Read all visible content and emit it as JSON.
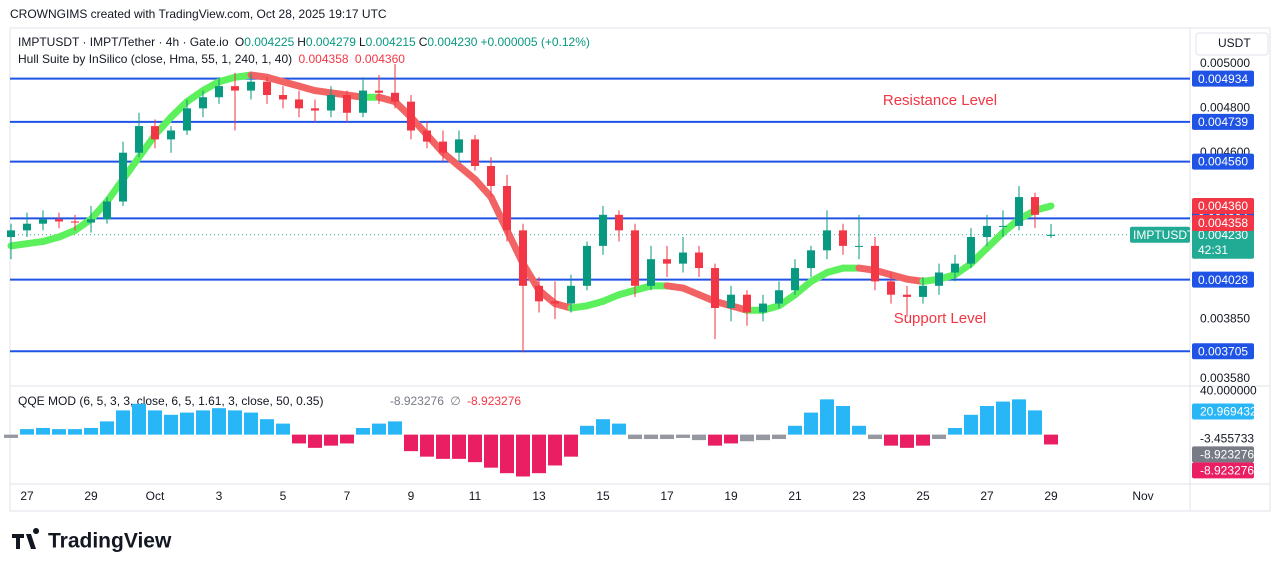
{
  "header": {
    "caption": "CROWNGIMS created with TradingView.com, Oct 28, 2025 19:17 UTC"
  },
  "legend": {
    "symbol": "IMPTUSDT · IMPT/Tether · 4h · Gate.io",
    "ohlc": [
      {
        "label": "O",
        "value": "0.004225"
      },
      {
        "label": "H",
        "value": "0.004279"
      },
      {
        "label": "L",
        "value": "0.004215"
      },
      {
        "label": "C",
        "value": "0.004230"
      }
    ],
    "change": "+0.000005 (+0.12%)",
    "indicator": "Hull Suite by InSilico (close, Hma, 55, 1, 240, 1, 40)",
    "indicator_values": [
      "0.004358",
      "0.004360"
    ]
  },
  "price_pane": {
    "currency": "USDT",
    "ylim": [
      0.003553,
      0.005153
    ],
    "yticks": [
      {
        "value": 0.005,
        "label": "0.005000"
      },
      {
        "value": 0.0048,
        "label": "0.004800"
      },
      {
        "value": 0.0046,
        "label": "0.004600"
      },
      {
        "value": 0.00385,
        "label": "0.003850"
      },
      {
        "value": 0.00358,
        "label": "0.003580"
      }
    ],
    "levels": [
      0.004934,
      0.004739,
      {
        "value": 0.00456,
        "label": "0.004560"
      },
      0.004304,
      0.004028,
      0.003705
    ],
    "hull_labels": [
      {
        "value": 0.00436,
        "label": "0.004360"
      },
      0.004358
    ],
    "last_price": {
      "symbol": "IMPTUSDT",
      "value": 0.00423,
      "label": "0.004230",
      "countdown": "42:31"
    },
    "annotations": [
      "Resistance Level",
      "Support Level"
    ],
    "colors": {
      "up": "#089981",
      "down": "#f23645",
      "level": "#1e53e5",
      "hull_up": "#5cf05c",
      "hull_down": "#f26464"
    },
    "candles": [
      [
        0.00422,
        0.00428,
        0.00412,
        0.00425
      ],
      [
        0.00425,
        0.00433,
        0.00422,
        0.00428
      ],
      [
        0.00428,
        0.00434,
        0.00425,
        0.0043
      ],
      [
        0.0043,
        0.00433,
        0.00426,
        0.00429
      ],
      [
        0.00429,
        0.00432,
        0.00425,
        0.004285
      ],
      [
        0.004285,
        0.00436,
        0.00424,
        0.0043
      ],
      [
        0.0043,
        0.0044,
        0.00428,
        0.00438
      ],
      [
        0.00438,
        0.00465,
        0.00436,
        0.0046
      ],
      [
        0.0046,
        0.00478,
        0.00458,
        0.00472
      ],
      [
        0.00472,
        0.00475,
        0.00462,
        0.00466
      ],
      [
        0.00466,
        0.00472,
        0.0046,
        0.0047
      ],
      [
        0.0047,
        0.00484,
        0.00468,
        0.0048
      ],
      [
        0.0048,
        0.00488,
        0.00476,
        0.00485
      ],
      [
        0.00485,
        0.00494,
        0.00482,
        0.0049
      ],
      [
        0.0049,
        0.00496,
        0.0047,
        0.00488
      ],
      [
        0.00488,
        0.00496,
        0.00484,
        0.00492
      ],
      [
        0.00492,
        0.00494,
        0.00482,
        0.00486
      ],
      [
        0.00486,
        0.0049,
        0.0048,
        0.00484
      ],
      [
        0.00484,
        0.00488,
        0.00476,
        0.0048
      ],
      [
        0.0048,
        0.00484,
        0.00474,
        0.00479
      ],
      [
        0.00479,
        0.0049,
        0.00476,
        0.00486
      ],
      [
        0.00486,
        0.00488,
        0.00474,
        0.00478
      ],
      [
        0.00478,
        0.00494,
        0.00476,
        0.00488
      ],
      [
        0.00488,
        0.00495,
        0.00482,
        0.00487
      ],
      [
        0.00487,
        0.005,
        0.0048,
        0.00483
      ],
      [
        0.00483,
        0.00486,
        0.00466,
        0.0047
      ],
      [
        0.0047,
        0.00474,
        0.00462,
        0.00465
      ],
      [
        0.00465,
        0.0047,
        0.00456,
        0.0046
      ],
      [
        0.0046,
        0.0047,
        0.00456,
        0.00466
      ],
      [
        0.00466,
        0.00468,
        0.00452,
        0.00454
      ],
      [
        0.00454,
        0.00458,
        0.0044,
        0.00445
      ],
      [
        0.00445,
        0.0045,
        0.0042,
        0.00425
      ],
      [
        0.00425,
        0.00428,
        0.0037,
        0.004
      ],
      [
        0.004,
        0.00404,
        0.00388,
        0.00393
      ],
      [
        0.00393,
        0.00402,
        0.00385,
        0.00392
      ],
      [
        0.00392,
        0.00405,
        0.00388,
        0.004
      ],
      [
        0.004,
        0.0042,
        0.00398,
        0.00418
      ],
      [
        0.00418,
        0.00436,
        0.00414,
        0.00432
      ],
      [
        0.00432,
        0.00434,
        0.0042,
        0.00425
      ],
      [
        0.00425,
        0.00428,
        0.00395,
        0.004
      ],
      [
        0.004,
        0.00418,
        0.00398,
        0.00412
      ],
      [
        0.00412,
        0.00418,
        0.00404,
        0.0041
      ],
      [
        0.0041,
        0.00422,
        0.00406,
        0.00415
      ],
      [
        0.00415,
        0.00418,
        0.00404,
        0.00408
      ],
      [
        0.00408,
        0.0041,
        0.00376,
        0.0039
      ],
      [
        0.0039,
        0.004,
        0.00384,
        0.00396
      ],
      [
        0.00396,
        0.00398,
        0.00382,
        0.00388
      ],
      [
        0.00388,
        0.00396,
        0.00384,
        0.00392
      ],
      [
        0.00392,
        0.00402,
        0.0039,
        0.00398
      ],
      [
        0.00398,
        0.00412,
        0.00396,
        0.00408
      ],
      [
        0.00408,
        0.00418,
        0.00404,
        0.00416
      ],
      [
        0.00416,
        0.00434,
        0.00412,
        0.00425
      ],
      [
        0.00425,
        0.00428,
        0.00414,
        0.00418
      ],
      [
        0.00418,
        0.00432,
        0.00412,
        0.00418
      ],
      [
        0.00418,
        0.00422,
        0.00398,
        0.00402
      ],
      [
        0.00402,
        0.00406,
        0.00392,
        0.00396
      ],
      [
        0.00396,
        0.004,
        0.00386,
        0.00395
      ],
      [
        0.00395,
        0.00404,
        0.00392,
        0.004
      ],
      [
        0.004,
        0.0041,
        0.00396,
        0.00406
      ],
      [
        0.00406,
        0.00414,
        0.00402,
        0.0041
      ],
      [
        0.0041,
        0.00426,
        0.00408,
        0.00422
      ],
      [
        0.00422,
        0.00432,
        0.00418,
        0.00427
      ],
      [
        0.00427,
        0.00434,
        0.00422,
        0.00427
      ],
      [
        0.00427,
        0.00445,
        0.00425,
        0.0044
      ],
      [
        0.0044,
        0.00442,
        0.00426,
        0.00432
      ],
      [
        0.004225,
        0.004279,
        0.004215,
        0.00423
      ]
    ],
    "hull": [
      0.00418,
      0.00419,
      0.0042,
      0.00422,
      0.00425,
      0.0043,
      0.00438,
      0.00448,
      0.00458,
      0.00468,
      0.00476,
      0.00483,
      0.00488,
      0.00492,
      0.00494,
      0.00495,
      0.00494,
      0.00492,
      0.0049,
      0.00488,
      0.00487,
      0.00486,
      0.00485,
      0.00485,
      0.00483,
      0.00476,
      0.00468,
      0.0046,
      0.00454,
      0.00448,
      0.0044,
      0.00425,
      0.0041,
      0.00398,
      0.00392,
      0.0039,
      0.00391,
      0.00393,
      0.00396,
      0.00398,
      0.004,
      0.004,
      0.00399,
      0.00396,
      0.00393,
      0.00391,
      0.00389,
      0.00389,
      0.00391,
      0.00396,
      0.00402,
      0.00406,
      0.00408,
      0.00408,
      0.00407,
      0.00405,
      0.00403,
      0.00402,
      0.00403,
      0.00405,
      0.0041,
      0.00417,
      0.00424,
      0.0043,
      0.00434,
      0.00436
    ]
  },
  "qqe_pane": {
    "title": "QQE MOD (6, 5, 3, 3, close, 6, 5, 1.61, 3, close, 50, 0.35)",
    "values_text": [
      "-8.923276",
      "∅",
      "-8.923276"
    ],
    "qlim": [
      -43,
      40.5
    ],
    "axis_labels": [
      {
        "value": 40,
        "label": "40.000000"
      },
      20.969432,
      -3.455733,
      -8.923276,
      -8.923276
    ],
    "colors": {
      "up": "#29b6f6",
      "down": "#e91e63",
      "flat": "#9598a1"
    },
    "histogram": [
      -3,
      5,
      6,
      5,
      5,
      6,
      12,
      22,
      28,
      22,
      18,
      20,
      22,
      24,
      22,
      20,
      14,
      10,
      -8,
      -12,
      -10,
      -8,
      6,
      10,
      12,
      -15,
      -20,
      -22,
      -22,
      -25,
      -30,
      -35,
      -38,
      -35,
      -28,
      -20,
      8,
      14,
      10,
      -4,
      -4,
      -4,
      -3,
      -5,
      -10,
      -8,
      -6,
      -5,
      -4,
      8,
      20,
      32,
      26,
      8,
      -4,
      -10,
      -12,
      -10,
      -4,
      6,
      18,
      26,
      30,
      32,
      22,
      -8.923276
    ]
  },
  "time_axis": [
    "27",
    "29",
    "Oct",
    "3",
    "5",
    "7",
    "9",
    "11",
    "13",
    "15",
    "17",
    "19",
    "21",
    "23",
    "25",
    "27",
    "29",
    "Nov"
  ],
  "footer": {
    "logo": "TradingView"
  }
}
